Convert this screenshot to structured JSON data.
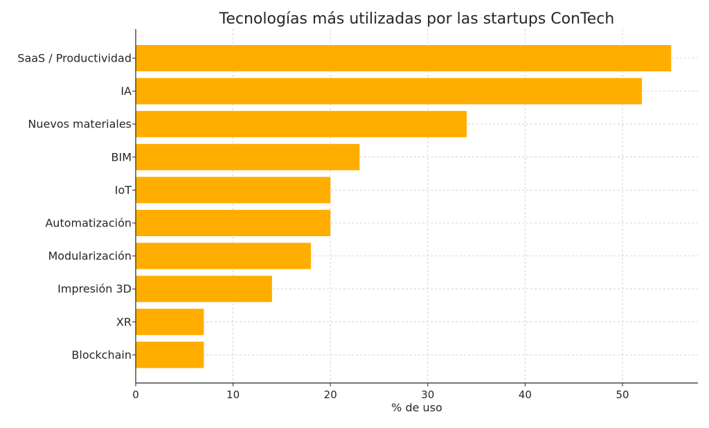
{
  "chart_data": {
    "type": "bar",
    "orientation": "horizontal",
    "title": "Tecnologías más utilizadas por las startups ConTech",
    "xlabel": "% de uso",
    "ylabel": "",
    "categories": [
      "SaaS / Productividad",
      "IA",
      "Nuevos materiales",
      "BIM",
      "IoT",
      "Automatización",
      "Modularización",
      "Impresión 3D",
      "XR",
      "Blockchain"
    ],
    "values": [
      55,
      52,
      34,
      23,
      20,
      20,
      18,
      14,
      7,
      7
    ],
    "xlim": [
      0,
      57.75
    ],
    "xticks": [
      0,
      10,
      20,
      30,
      40,
      50
    ],
    "grid": true,
    "bar_color": "#FFAE00",
    "grid_color": "#c8c8c8"
  }
}
